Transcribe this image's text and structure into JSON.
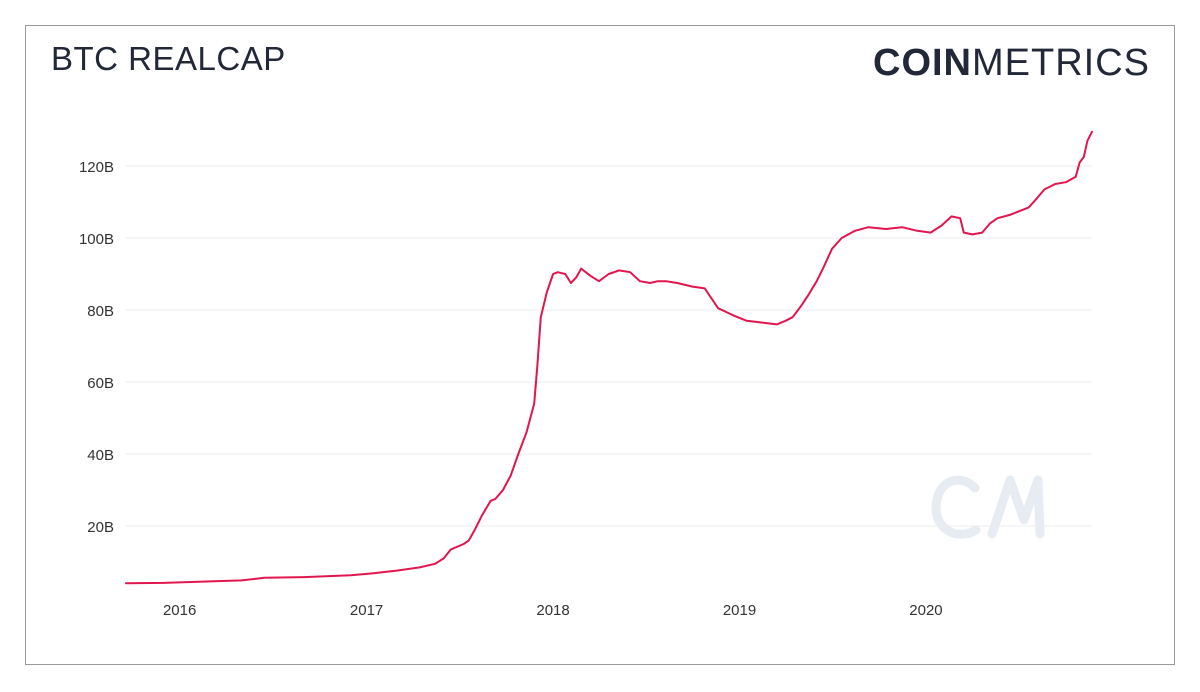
{
  "title": "BTC REALCAP",
  "logo": {
    "bold": "COIN",
    "light": "METRICS"
  },
  "colors": {
    "line": "#e1164f",
    "grid": "#ececec",
    "text": "#333333",
    "frame": "#9a9a9a"
  },
  "chart_data": {
    "type": "line",
    "title": "BTC REALCAP",
    "xlabel": "",
    "ylabel": "",
    "xlim": [
      "2015-09-18",
      "2020-11-21"
    ],
    "ylim": [
      0,
      130
    ],
    "y_unit": "B",
    "x_ticks": [
      {
        "date": "2016-01-01",
        "label": "2016"
      },
      {
        "date": "2017-01-01",
        "label": "2017"
      },
      {
        "date": "2018-01-01",
        "label": "2018"
      },
      {
        "date": "2019-01-01",
        "label": "2019"
      },
      {
        "date": "2020-01-01",
        "label": "2020"
      }
    ],
    "y_ticks": [
      {
        "value": 20,
        "label": "20B"
      },
      {
        "value": 40,
        "label": "40B"
      },
      {
        "value": 60,
        "label": "60B"
      },
      {
        "value": 80,
        "label": "80B"
      },
      {
        "value": 100,
        "label": "100B"
      },
      {
        "value": 120,
        "label": "120B"
      }
    ],
    "grid": true,
    "legend": "none",
    "series": [
      {
        "points": [
          [
            "2015-09-18",
            4.1
          ],
          [
            "2015-12-01",
            4.2
          ],
          [
            "2016-03-01",
            4.6
          ],
          [
            "2016-05-01",
            4.9
          ],
          [
            "2016-06-15",
            5.6
          ],
          [
            "2016-09-01",
            5.8
          ],
          [
            "2016-12-01",
            6.3
          ],
          [
            "2017-01-15",
            6.9
          ],
          [
            "2017-03-01",
            7.6
          ],
          [
            "2017-04-15",
            8.5
          ],
          [
            "2017-05-15",
            9.5
          ],
          [
            "2017-06-01",
            11
          ],
          [
            "2017-06-15",
            13.5
          ],
          [
            "2017-07-10",
            15
          ],
          [
            "2017-07-20",
            16
          ],
          [
            "2017-08-01",
            19
          ],
          [
            "2017-08-15",
            23
          ],
          [
            "2017-09-01",
            27
          ],
          [
            "2017-09-10",
            27.5
          ],
          [
            "2017-09-25",
            30
          ],
          [
            "2017-10-10",
            34
          ],
          [
            "2017-10-25",
            40
          ],
          [
            "2017-11-10",
            46
          ],
          [
            "2017-11-25",
            54
          ],
          [
            "2017-12-01",
            64
          ],
          [
            "2017-12-08",
            78
          ],
          [
            "2017-12-20",
            85
          ],
          [
            "2018-01-01",
            90
          ],
          [
            "2018-01-10",
            90.5
          ],
          [
            "2018-01-25",
            90
          ],
          [
            "2018-02-05",
            87.5
          ],
          [
            "2018-02-15",
            89
          ],
          [
            "2018-02-25",
            91.5
          ],
          [
            "2018-03-15",
            89.5
          ],
          [
            "2018-04-01",
            88
          ],
          [
            "2018-04-20",
            90
          ],
          [
            "2018-05-10",
            91
          ],
          [
            "2018-06-01",
            90.5
          ],
          [
            "2018-06-20",
            88
          ],
          [
            "2018-07-10",
            87.5
          ],
          [
            "2018-07-25",
            88
          ],
          [
            "2018-08-10",
            88
          ],
          [
            "2018-09-01",
            87.5
          ],
          [
            "2018-10-01",
            86.5
          ],
          [
            "2018-10-25",
            86
          ],
          [
            "2018-11-20",
            80.5
          ],
          [
            "2018-12-20",
            78.5
          ],
          [
            "2019-01-15",
            77
          ],
          [
            "2019-02-15",
            76.5
          ],
          [
            "2019-03-15",
            76
          ],
          [
            "2019-04-01",
            77
          ],
          [
            "2019-04-15",
            78
          ],
          [
            "2019-05-01",
            81
          ],
          [
            "2019-05-15",
            84
          ],
          [
            "2019-06-01",
            88
          ],
          [
            "2019-06-15",
            92
          ],
          [
            "2019-07-01",
            97
          ],
          [
            "2019-07-20",
            100
          ],
          [
            "2019-08-15",
            102
          ],
          [
            "2019-09-10",
            103
          ],
          [
            "2019-10-15",
            102.5
          ],
          [
            "2019-11-15",
            103
          ],
          [
            "2019-12-15",
            102
          ],
          [
            "2020-01-10",
            101.5
          ],
          [
            "2020-02-01",
            103.5
          ],
          [
            "2020-02-20",
            106
          ],
          [
            "2020-03-08",
            105.5
          ],
          [
            "2020-03-15",
            101.5
          ],
          [
            "2020-04-01",
            101
          ],
          [
            "2020-04-20",
            101.5
          ],
          [
            "2020-05-05",
            104
          ],
          [
            "2020-05-20",
            105.5
          ],
          [
            "2020-06-15",
            106.5
          ],
          [
            "2020-07-20",
            108.5
          ],
          [
            "2020-08-05",
            111
          ],
          [
            "2020-08-20",
            113.5
          ],
          [
            "2020-09-10",
            115
          ],
          [
            "2020-10-01",
            115.5
          ],
          [
            "2020-10-20",
            117
          ],
          [
            "2020-10-28",
            121
          ],
          [
            "2020-11-05",
            122.5
          ],
          [
            "2020-11-12",
            127
          ],
          [
            "2020-11-21",
            129.5
          ]
        ]
      }
    ]
  }
}
